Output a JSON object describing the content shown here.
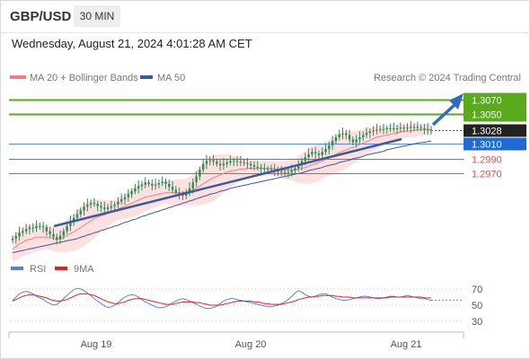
{
  "header": {
    "symbol": "GBP/USD",
    "timeframe": "30 MIN"
  },
  "datetime": "Wednesday, August 21, 2024 4:01:28 AM CET",
  "colors": {
    "candle": "#2e8b57",
    "ma20": "#f08080",
    "bollinger_fill": "#fde0e0",
    "ma50": "#3c5a9a",
    "trendline": "#3c5aa0",
    "resistance": "#5aaa1e",
    "support": "#e25050",
    "pivot": "#5a8ae6",
    "current_price_bg": "#222222",
    "rsi": "#5a7fd8",
    "rsi_ma": "#e02020",
    "arrow": "#2f6cc0"
  },
  "chart_data": [
    {
      "type": "line",
      "title": "",
      "legend": [
        {
          "name": "MA 20 + Bollinger Bands",
          "color": "#f08080"
        },
        {
          "name": "MA 50",
          "color": "#3c5a9a"
        }
      ],
      "credit": "Research © 2024 Trading Central",
      "x_ticks": [
        "Aug 19",
        "Aug 20",
        "Aug 21"
      ],
      "y_range": [
        1.286,
        1.3088
      ],
      "levels": [
        {
          "label": "1.3070",
          "value": 1.307,
          "kind": "resistance"
        },
        {
          "label": "1.3050",
          "value": 1.305,
          "kind": "resistance"
        },
        {
          "label": "1.3028",
          "value": 1.3028,
          "kind": "current"
        },
        {
          "label": "1.3010",
          "value": 1.301,
          "kind": "pivot"
        },
        {
          "label": "1.2990",
          "value": 1.299,
          "kind": "support"
        },
        {
          "label": "1.2970",
          "value": 1.297,
          "kind": "support"
        }
      ],
      "close": [
        1.2882,
        1.2885,
        1.289,
        1.2892,
        1.2895,
        1.2897,
        1.2896,
        1.2899,
        1.2898,
        1.2897,
        1.2892,
        1.2888,
        1.2884,
        1.2881,
        1.2886,
        1.2892,
        1.2899,
        1.2905,
        1.291,
        1.2915,
        1.292,
        1.2925,
        1.2928,
        1.293,
        1.2929,
        1.2926,
        1.2924,
        1.2922,
        1.2924,
        1.2926,
        1.2928,
        1.2932,
        1.2935,
        1.2938,
        1.2942,
        1.2946,
        1.295,
        1.2953,
        1.2955,
        1.2958,
        1.2956,
        1.2954,
        1.2955,
        1.2957,
        1.2959,
        1.2956,
        1.2952,
        1.2948,
        1.2944,
        1.2942,
        1.294,
        1.2943,
        1.295,
        1.2958,
        1.2966,
        1.2975,
        1.2983,
        1.2987,
        1.2988,
        1.2986,
        1.2983,
        1.2981,
        1.2983,
        1.2985,
        1.2987,
        1.2987,
        1.2986,
        1.2985,
        1.2984,
        1.2983,
        1.2981,
        1.2979,
        1.2978,
        1.2977,
        1.2976,
        1.2976,
        1.2975,
        1.2974,
        1.2973,
        1.2972,
        1.2971,
        1.2972,
        1.2974,
        1.2977,
        1.2981,
        1.2987,
        1.2992,
        1.2996,
        1.2999,
        1.2997,
        1.2995,
        1.2999,
        1.3003,
        1.3008,
        1.3014,
        1.3019,
        1.3023,
        1.3024,
        1.3022,
        1.3016,
        1.3012,
        1.3016,
        1.3019,
        1.3022,
        1.3025,
        1.3027,
        1.3028,
        1.3029,
        1.303,
        1.303,
        1.3031,
        1.3031,
        1.303,
        1.3031,
        1.3032,
        1.3031,
        1.3032,
        1.3033,
        1.3033,
        1.3032,
        1.3031,
        1.303,
        1.3029,
        1.3028
      ],
      "ma20": [
        1.2868,
        1.2871,
        1.2875,
        1.2877,
        1.288,
        1.2881,
        1.2882,
        1.2884,
        1.2884,
        1.2884,
        1.2884,
        1.2883,
        1.2882,
        1.2881,
        1.2882,
        1.2884,
        1.2886,
        1.2889,
        1.2891,
        1.2894,
        1.2897,
        1.29,
        1.2903,
        1.2906,
        1.2909,
        1.2911,
        1.2913,
        1.2914,
        1.2916,
        1.2918,
        1.292,
        1.2922,
        1.2924,
        1.2926,
        1.2928,
        1.293,
        1.2932,
        1.2934,
        1.2936,
        1.2938,
        1.2939,
        1.294,
        1.2941,
        1.2942,
        1.2943,
        1.2944,
        1.2944,
        1.2944,
        1.2944,
        1.2944,
        1.2944,
        1.2945,
        1.2946,
        1.2948,
        1.295,
        1.2953,
        1.2956,
        1.2959,
        1.2962,
        1.2964,
        1.2966,
        1.2968,
        1.297,
        1.2972,
        1.2973,
        1.2974,
        1.2975,
        1.2976,
        1.2976,
        1.2977,
        1.2977,
        1.2977,
        1.2977,
        1.2977,
        1.2977,
        1.2977,
        1.2977,
        1.2976,
        1.2976,
        1.2975,
        1.2975,
        1.2975,
        1.2975,
        1.2975,
        1.2976,
        1.2977,
        1.2978,
        1.298,
        1.2982,
        1.2983,
        1.2985,
        1.2987,
        1.2989,
        1.2991,
        1.2993,
        1.2996,
        1.2998,
        1.3,
        1.3002,
        1.3004,
        1.3005,
        1.3007,
        1.3009,
        1.3011,
        1.3013,
        1.3015,
        1.3017,
        1.3019,
        1.302,
        1.3021,
        1.3022,
        1.3023,
        1.3024,
        1.3025,
        1.3026,
        1.3027,
        1.3027,
        1.3028,
        1.3028,
        1.3029,
        1.3029,
        1.3029,
        1.3029,
        1.3029
      ],
      "bb_width": [
        0.0018,
        0.0018,
        0.0019,
        0.0019,
        0.002,
        0.002,
        0.0019,
        0.0019,
        0.0018,
        0.0017,
        0.0016,
        0.0016,
        0.0016,
        0.0017,
        0.0018,
        0.002,
        0.0022,
        0.0024,
        0.0026,
        0.0027,
        0.0028,
        0.0028,
        0.0028,
        0.0027,
        0.0026,
        0.0024,
        0.0022,
        0.002,
        0.0018,
        0.0016,
        0.0015,
        0.0015,
        0.0016,
        0.0017,
        0.0018,
        0.0019,
        0.002,
        0.002,
        0.002,
        0.0019,
        0.0018,
        0.0017,
        0.0016,
        0.0015,
        0.0015,
        0.0015,
        0.0016,
        0.0017,
        0.0018,
        0.0018,
        0.0018,
        0.0018,
        0.0019,
        0.0021,
        0.0023,
        0.0026,
        0.0028,
        0.003,
        0.0031,
        0.0031,
        0.003,
        0.0028,
        0.0026,
        0.0024,
        0.0022,
        0.002,
        0.0018,
        0.0016,
        0.0014,
        0.0012,
        0.0011,
        0.001,
        0.001,
        0.001,
        0.001,
        0.001,
        0.001,
        0.001,
        0.001,
        0.0011,
        0.0012,
        0.0013,
        0.0014,
        0.0016,
        0.0018,
        0.002,
        0.0022,
        0.0024,
        0.0025,
        0.0025,
        0.0025,
        0.0024,
        0.0024,
        0.0024,
        0.0025,
        0.0026,
        0.0026,
        0.0026,
        0.0025,
        0.0024,
        0.0022,
        0.0021,
        0.002,
        0.0019,
        0.0018,
        0.0017,
        0.0016,
        0.0015,
        0.0014,
        0.0013,
        0.0012,
        0.0011,
        0.0011,
        0.001,
        0.001,
        0.0009,
        0.0009,
        0.0009,
        0.0009,
        0.0008,
        0.0008,
        0.0008,
        0.0008,
        0.0008
      ],
      "ma50": [
        1.2863,
        1.2864,
        1.2865,
        1.2866,
        1.2867,
        1.2868,
        1.2869,
        1.287,
        1.2871,
        1.2872,
        1.2873,
        1.2874,
        1.2875,
        1.2876,
        1.2877,
        1.2878,
        1.2879,
        1.288,
        1.2881,
        1.2882,
        1.2884,
        1.2885,
        1.2887,
        1.2888,
        1.289,
        1.2891,
        1.2893,
        1.2894,
        1.2896,
        1.2897,
        1.2899,
        1.29,
        1.2902,
        1.2904,
        1.2905,
        1.2907,
        1.2908,
        1.291,
        1.2912,
        1.2913,
        1.2915,
        1.2916,
        1.2918,
        1.2919,
        1.2921,
        1.2922,
        1.2924,
        1.2925,
        1.2927,
        1.2928,
        1.293,
        1.2931,
        1.2933,
        1.2934,
        1.2936,
        1.2937,
        1.2939,
        1.294,
        1.2942,
        1.2943,
        1.2944,
        1.2946,
        1.2947,
        1.2948,
        1.295,
        1.2951,
        1.2952,
        1.2953,
        1.2954,
        1.2955,
        1.2956,
        1.2957,
        1.2958,
        1.2959,
        1.296,
        1.2961,
        1.2962,
        1.2963,
        1.2964,
        1.2965,
        1.2966,
        1.2967,
        1.2968,
        1.2969,
        1.297,
        1.2971,
        1.2972,
        1.2974,
        1.2975,
        1.2976,
        1.2977,
        1.2978,
        1.298,
        1.2981,
        1.2982,
        1.2983,
        1.2985,
        1.2986,
        1.2987,
        1.2988,
        1.299,
        1.2991,
        1.2992,
        1.2993,
        1.2995,
        1.2996,
        1.2997,
        1.2998,
        1.2999,
        1.3,
        1.3002,
        1.3003,
        1.3004,
        1.3005,
        1.3006,
        1.3007,
        1.3008,
        1.3009,
        1.301,
        1.3011,
        1.3012,
        1.3012,
        1.3013,
        1.3014
      ]
    },
    {
      "type": "line",
      "title": "",
      "legend": [
        {
          "name": "RSI",
          "color": "#5a7fd8"
        },
        {
          "name": "9MA",
          "color": "#e02020"
        }
      ],
      "y_ticks": [
        70,
        50,
        30
      ],
      "y_range": [
        20,
        80
      ],
      "rsi": [
        56,
        60,
        64,
        66,
        67,
        66,
        64,
        61,
        59,
        57,
        54,
        52,
        50,
        51,
        54,
        58,
        62,
        66,
        69,
        71,
        70,
        68,
        65,
        62,
        58,
        55,
        52,
        49,
        47,
        48,
        50,
        53,
        57,
        60,
        62,
        63,
        62,
        60,
        57,
        54,
        52,
        50,
        48,
        47,
        47,
        48,
        50,
        53,
        55,
        57,
        58,
        57,
        55,
        53,
        51,
        49,
        47,
        46,
        46,
        47,
        49,
        52,
        55,
        57,
        58,
        58,
        57,
        56,
        55,
        54,
        53,
        52,
        51,
        50,
        49,
        48,
        48,
        49,
        50,
        52,
        54,
        57,
        61,
        65,
        68,
        66,
        63,
        61,
        60,
        61,
        63,
        64,
        64,
        62,
        60,
        58,
        57,
        56,
        56,
        57,
        58,
        59,
        60,
        61,
        61,
        60,
        59,
        58,
        58,
        59,
        60,
        61,
        61,
        60,
        60,
        61,
        62,
        61,
        60,
        59,
        58,
        58,
        57,
        56
      ],
      "rsi_ma": [
        55,
        57,
        59,
        61,
        62,
        63,
        63,
        62,
        61,
        60,
        59,
        57,
        56,
        55,
        55,
        56,
        57,
        59,
        61,
        63,
        64,
        64,
        64,
        63,
        62,
        60,
        58,
        56,
        54,
        53,
        52,
        52,
        53,
        54,
        56,
        57,
        58,
        58,
        58,
        57,
        56,
        55,
        54,
        53,
        52,
        51,
        51,
        51,
        52,
        53,
        54,
        54,
        54,
        54,
        53,
        53,
        52,
        51,
        50,
        50,
        50,
        50,
        51,
        52,
        53,
        54,
        55,
        55,
        55,
        55,
        55,
        54,
        54,
        53,
        52,
        52,
        51,
        51,
        51,
        51,
        52,
        53,
        54,
        55,
        57,
        58,
        59,
        60,
        60,
        61,
        61,
        62,
        62,
        62,
        62,
        61,
        61,
        60,
        60,
        60,
        59,
        59,
        59,
        59,
        59,
        59,
        59,
        59,
        59,
        59,
        59,
        60,
        60,
        60,
        60,
        60,
        60,
        60,
        60,
        60,
        60,
        59,
        59,
        59
      ]
    }
  ]
}
